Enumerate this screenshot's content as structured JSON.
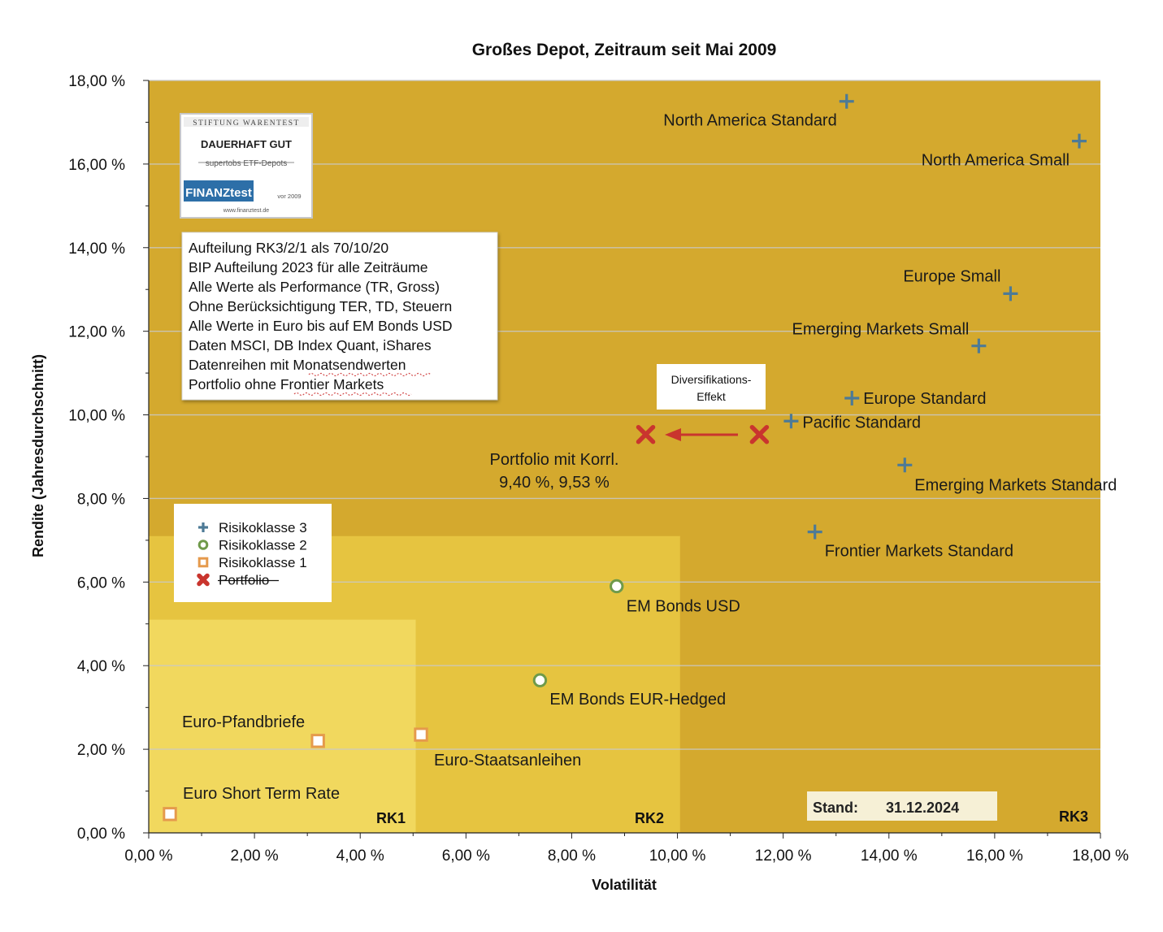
{
  "chart_data": {
    "type": "scatter",
    "title": "Großes Depot, Zeitraum seit Mai 2009",
    "xlabel": "Volatilität",
    "ylabel": "Rendite (Jahresdurchschnitt)",
    "xlim": [
      0,
      18
    ],
    "ylim": [
      0,
      18
    ],
    "x_ticks": [
      "0,00 %",
      "2,00 %",
      "4,00 %",
      "6,00 %",
      "8,00 %",
      "10,00 %",
      "12,00 %",
      "14,00 %",
      "16,00 %",
      "18,00 %"
    ],
    "y_ticks": [
      "0,00 %",
      "2,00 %",
      "4,00 %",
      "6,00 %",
      "8,00 %",
      "10,00 %",
      "12,00 %",
      "14,00 %",
      "16,00 %",
      "18,00 %"
    ],
    "grid": "horizontal",
    "zones": [
      {
        "name": "RK3",
        "x": [
          0,
          18
        ],
        "y": [
          0,
          18
        ],
        "color": "#d4a92e"
      },
      {
        "name": "RK2",
        "x": [
          0,
          10.05
        ],
        "y": [
          0,
          7.1
        ],
        "color": "#e6c440"
      },
      {
        "name": "RK1",
        "x": [
          0,
          5.05
        ],
        "y": [
          0,
          5.1
        ],
        "color": "#f1d85e"
      }
    ],
    "series": [
      {
        "name": "Risikoklasse 3",
        "marker": "plus",
        "color": "#4d7a96",
        "points": [
          {
            "label": "North America Standard",
            "x": 13.2,
            "y": 17.5
          },
          {
            "label": "North America Small",
            "x": 17.6,
            "y": 16.55
          },
          {
            "label": "Europe Small",
            "x": 16.3,
            "y": 12.9
          },
          {
            "label": "Emerging Markets Small",
            "x": 15.7,
            "y": 11.65
          },
          {
            "label": "Europe Standard",
            "x": 13.3,
            "y": 10.4
          },
          {
            "label": "Pacific Standard",
            "x": 12.15,
            "y": 9.85
          },
          {
            "label": "Emerging Markets Standard",
            "x": 14.3,
            "y": 8.8
          },
          {
            "label": "Frontier Markets Standard",
            "x": 12.6,
            "y": 7.2
          }
        ]
      },
      {
        "name": "Risikoklasse 2",
        "marker": "circle",
        "color": "#6f9a4a",
        "points": [
          {
            "label": "EM Bonds USD",
            "x": 8.85,
            "y": 5.9
          },
          {
            "label": "EM Bonds EUR-Hedged",
            "x": 7.4,
            "y": 3.65
          }
        ]
      },
      {
        "name": "Risikoklasse 1",
        "marker": "square",
        "color": "#e59a4c",
        "points": [
          {
            "label": "Euro-Pfandbriefe",
            "x": 3.2,
            "y": 2.2
          },
          {
            "label": "Euro-Staatsanleihen",
            "x": 5.15,
            "y": 2.35
          },
          {
            "label": "Euro Short Term Rate",
            "x": 0.4,
            "y": 0.45
          }
        ]
      },
      {
        "name": "Portfolio",
        "marker": "x",
        "color": "#c9352e",
        "points": [
          {
            "label": "",
            "x": 9.4,
            "y": 9.53
          },
          {
            "label": "",
            "x": 11.55,
            "y": 9.53
          }
        ]
      }
    ],
    "portfolio_label": [
      "Portfolio mit Korrl.",
      "9,40 %, 9,53 %"
    ],
    "diversification_label": [
      "Diversifikations-",
      "Effekt"
    ],
    "zone_labels": [
      "RK1",
      "RK2",
      "RK3"
    ],
    "stand_label": "Stand:",
    "stand_date": "31.12.2024",
    "notes": [
      "Aufteilung RK3/2/1 als 70/10/20",
      "BIP Aufteilung 2023 für alle Zeiträume",
      "Alle Werte als Performance (TR, Gross)",
      "Ohne Berücksichtigung TER, TD, Steuern",
      "Alle Werte in Euro bis auf EM Bonds USD",
      "Daten MSCI, DB Index Quant, iShares",
      "Datenreihen mit Monatsendwerten",
      "Portfolio ohne Frontier Markets"
    ],
    "legend": {
      "placement": "left-middle",
      "entries": [
        "Risikoklasse 3",
        "Risikoklasse 2",
        "Risikoklasse 1",
        "Portfolio"
      ]
    },
    "badge": {
      "header": "STIFTUNG WARENTEST",
      "rating": "DAUERHAFT GUT",
      "subtitle": "supertobs ETF-Depots",
      "brand": "FINANZtest",
      "year": "vor 2009",
      "url": "www.finanztest.de"
    }
  }
}
